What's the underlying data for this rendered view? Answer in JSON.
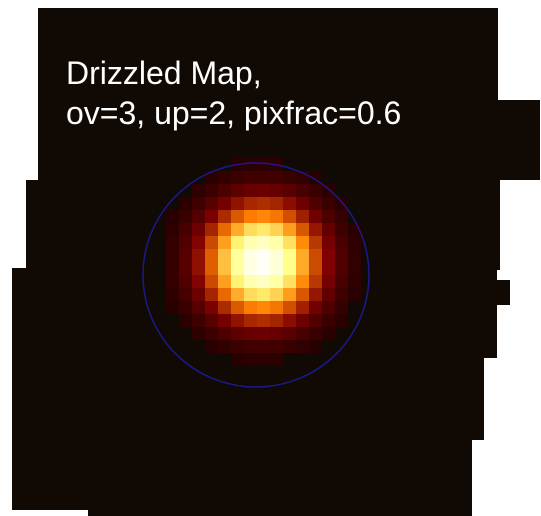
{
  "title": {
    "lines": [
      "Drizzled Map,",
      "ov=3, up=2, pixfrac=0.6"
    ]
  }
}
